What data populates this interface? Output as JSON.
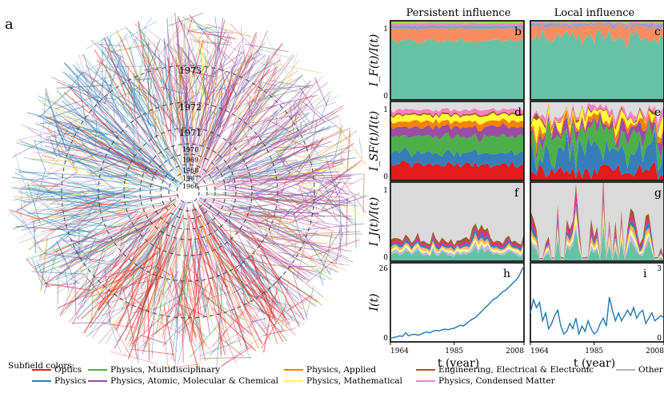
{
  "panel_a": {
    "label": "a",
    "year_labels": [
      "1973",
      "1972",
      "1971",
      "1970",
      "1969",
      "1968",
      "1967",
      "1966"
    ]
  },
  "legend": {
    "title": "Subfield colors:",
    "entries": [
      {
        "label": "Optics",
        "color": "#e41a1c"
      },
      {
        "label": "Physics",
        "color": "#377eb8"
      },
      {
        "label": "Physics, Multidisciplinary",
        "color": "#4daf4a"
      },
      {
        "label": "Physics, Atomic, Molecular & Chemical",
        "color": "#984ea3"
      },
      {
        "label": "Physics, Applied",
        "color": "#ff7f00"
      },
      {
        "label": "Physics, Mathematical",
        "color": "#ffff33"
      },
      {
        "label": "Engineering, Electrical & Electronic",
        "color": "#a65628"
      },
      {
        "label": "Physics, Condensed Matter",
        "color": "#f781bf"
      },
      {
        "label": "Other",
        "color": "#b3b3b3"
      }
    ]
  },
  "columns": {
    "persistent": "Persistent influence",
    "local": "Local influence"
  },
  "chart_data": [
    {
      "type": "area",
      "panels": [
        "b",
        "c"
      ],
      "ylabel": "I_F(t)/I(t)",
      "ylim": [
        0,
        1
      ],
      "yticks": [
        "0",
        "1"
      ],
      "series": [
        {
          "color": "#66c2a5",
          "persistent": 0.75,
          "local": 0.8
        },
        {
          "color": "#fc8d62",
          "persistent": 0.15,
          "local": 0.13
        },
        {
          "color": "#8da0cb",
          "persistent": 0.04,
          "local": 0.03
        },
        {
          "color": "#e78ac3",
          "persistent": 0.03,
          "local": 0.02
        },
        {
          "color": "#a6d854",
          "persistent": 0.03,
          "local": 0.02
        }
      ]
    },
    {
      "type": "area",
      "panels": [
        "d",
        "e"
      ],
      "ylabel": "I_SF(t)/I(t)",
      "ylim": [
        0,
        1
      ],
      "yticks": [
        "0",
        "1"
      ],
      "series": [
        {
          "color": "#e41a1c",
          "persistent": 0.2,
          "local": 0.12
        },
        {
          "color": "#377eb8",
          "persistent": 0.15,
          "local": 0.25
        },
        {
          "color": "#4daf4a",
          "persistent": 0.2,
          "local": 0.2
        },
        {
          "color": "#984ea3",
          "persistent": 0.12,
          "local": 0.1
        },
        {
          "color": "#ff7f00",
          "persistent": 0.07,
          "local": 0.05
        },
        {
          "color": "#ffff33",
          "persistent": 0.08,
          "local": 0.08
        },
        {
          "color": "#a65628",
          "persistent": 0.02,
          "local": 0.02
        },
        {
          "color": "#f781bf",
          "persistent": 0.05,
          "local": 0.05
        },
        {
          "color": "#dddddd",
          "persistent": 0.11,
          "local": 0.13
        }
      ]
    },
    {
      "type": "area",
      "panels": [
        "f",
        "g"
      ],
      "ylabel": "I_J(t)/I(t)",
      "ylim": [
        0,
        1
      ],
      "yticks": [
        "0",
        "1"
      ]
    },
    {
      "type": "line",
      "panels": [
        "h",
        "i"
      ],
      "ylabel": "I(t)",
      "xlabel": "t (year)",
      "x_ticks": [
        "1964",
        "1985",
        "2008"
      ],
      "persistent": {
        "ylim": [
          0,
          26
        ],
        "yticks": [
          "0",
          "26"
        ],
        "x": [
          1964,
          1965,
          1966,
          1967,
          1968,
          1969,
          1970,
          1971,
          1972,
          1973,
          1974,
          1975,
          1976,
          1977,
          1978,
          1979,
          1980,
          1981,
          1982,
          1983,
          1984,
          1985,
          1986,
          1987,
          1988,
          1989,
          1990,
          1991,
          1992,
          1993,
          1994,
          1995,
          1996,
          1997,
          1998,
          1999,
          2000,
          2001,
          2002,
          2003,
          2004,
          2005,
          2006,
          2007,
          2008
        ],
        "y": [
          1,
          1.5,
          1.6,
          2,
          1.8,
          3,
          2,
          2.4,
          2.5,
          2.2,
          2.5,
          3,
          3.2,
          3,
          3.5,
          3.8,
          3.6,
          4,
          4.2,
          4,
          4.3,
          4.5,
          5,
          5.5,
          5.2,
          6,
          6.8,
          7.5,
          8,
          9,
          10,
          11,
          12,
          13,
          14,
          14.5,
          15.5,
          16.5,
          17,
          18,
          19,
          20,
          21,
          23,
          25
        ]
      },
      "local": {
        "ylim": [
          0,
          3
        ],
        "yticks": [
          "0",
          "3"
        ],
        "x": [
          1964,
          1965,
          1966,
          1967,
          1968,
          1969,
          1970,
          1971,
          1972,
          1973,
          1974,
          1975,
          1976,
          1977,
          1978,
          1979,
          1980,
          1981,
          1982,
          1983,
          1984,
          1985,
          1986,
          1987,
          1988,
          1989,
          1990,
          1991,
          1992,
          1993,
          1994,
          1995,
          1996,
          1997,
          1998,
          1999,
          2000,
          2001,
          2002,
          2003,
          2004,
          2005,
          2006,
          2007,
          2008
        ],
        "y": [
          1.1,
          1.6,
          1.3,
          1.5,
          0.8,
          1.1,
          0.5,
          0.7,
          1.0,
          1.2,
          0.6,
          0.3,
          0.4,
          0.7,
          0.5,
          0.9,
          0.3,
          0.6,
          0.4,
          0.8,
          0.5,
          0.3,
          0.4,
          0.7,
          0.9,
          0.6,
          1.7,
          1.2,
          0.8,
          1.1,
          0.8,
          1.0,
          1.2,
          1.0,
          1.3,
          0.9,
          1.1,
          1.2,
          0.7,
          0.9,
          1.1,
          0.8,
          0.9,
          1.0,
          0.9
        ]
      }
    }
  ]
}
